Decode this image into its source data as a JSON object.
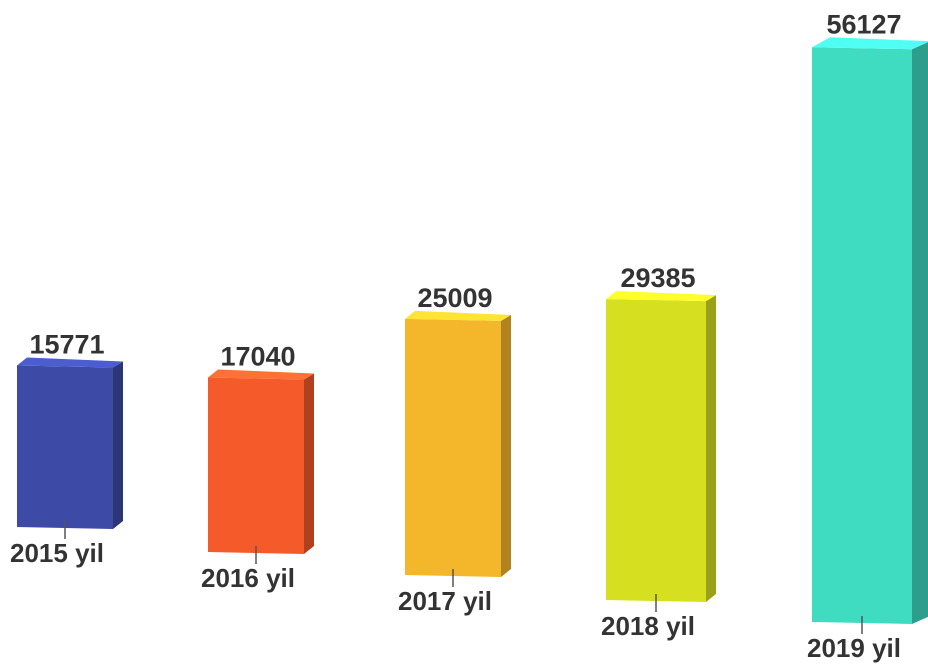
{
  "chart_data": {
    "type": "bar",
    "style": "3d-perspective",
    "categories": [
      "2015 yil",
      "2016 yil",
      "2017 yil",
      "2018 yil",
      "2019 yil"
    ],
    "values": [
      15771,
      17040,
      25009,
      29385,
      56127
    ],
    "data_labels": [
      "15771",
      "17040",
      "25009",
      "29385",
      "56127"
    ],
    "colors": [
      "#3d4aa6",
      "#f45a2a",
      "#f4b62a",
      "#d6e021",
      "#3fdcc2"
    ],
    "title": "",
    "xlabel": "",
    "ylabel": "",
    "grid": false,
    "legend": "none"
  }
}
